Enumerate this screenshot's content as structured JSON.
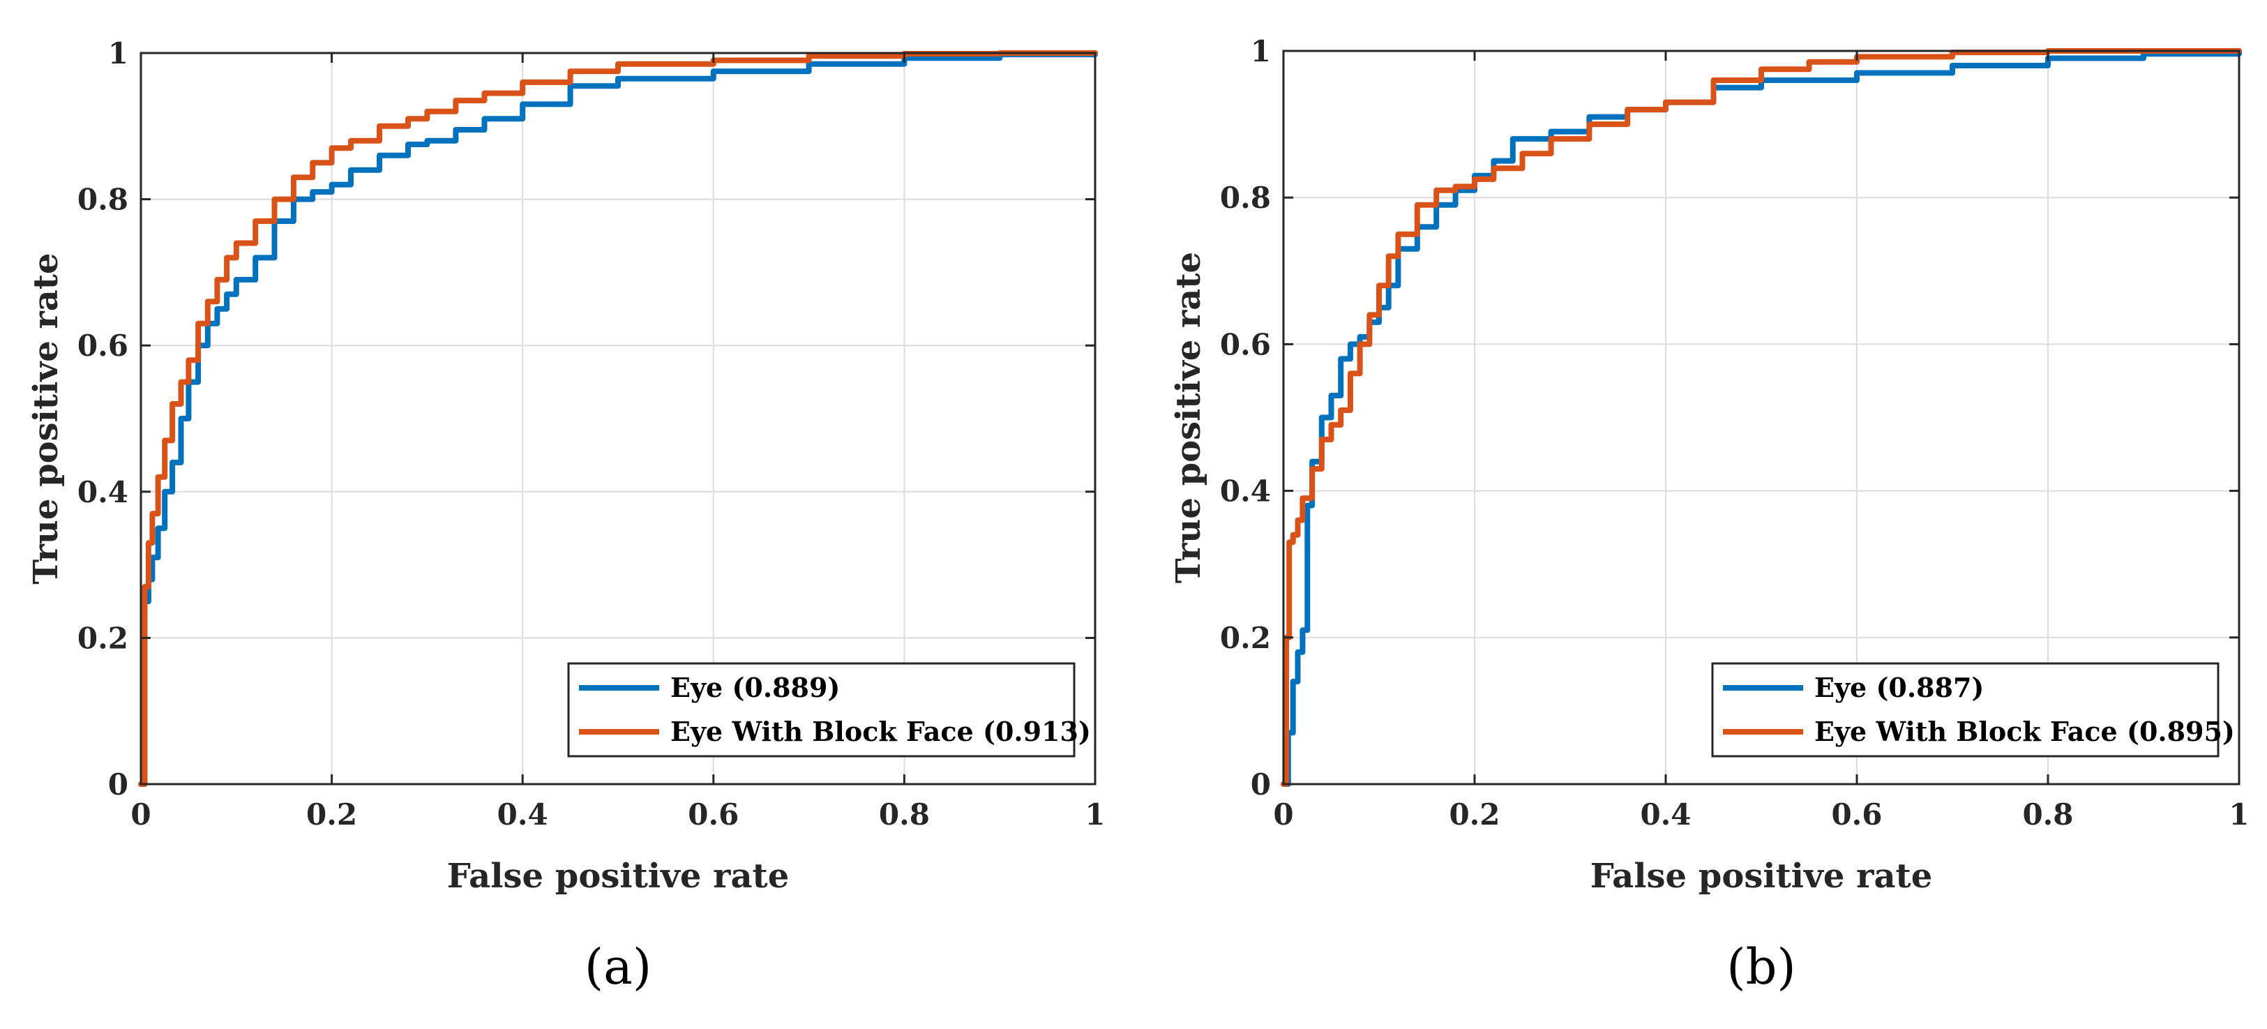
{
  "colors": {
    "series1": "#0072BD",
    "series2": "#D95319"
  },
  "chart_data": [
    {
      "type": "line",
      "panel_label": "(a)",
      "xlabel": "False positive rate",
      "ylabel": "True positive rate",
      "xlim": [
        0,
        1
      ],
      "ylim": [
        0,
        1
      ],
      "xticks": [
        "0",
        "0.2",
        "0.4",
        "0.6",
        "0.8",
        "1"
      ],
      "yticks": [
        "0",
        "0.2",
        "0.4",
        "0.6",
        "0.8",
        "1"
      ],
      "grid": true,
      "legend_position": "bottom-right",
      "series": [
        {
          "name": "Eye (0.889)",
          "color": "#0072BD",
          "x": [
            0,
            0.004,
            0.008,
            0.012,
            0.018,
            0.025,
            0.033,
            0.042,
            0.05,
            0.06,
            0.07,
            0.08,
            0.09,
            0.1,
            0.12,
            0.14,
            0.16,
            0.18,
            0.2,
            0.22,
            0.25,
            0.28,
            0.3,
            0.33,
            0.36,
            0.4,
            0.45,
            0.5,
            0.6,
            0.7,
            0.8,
            0.9,
            1
          ],
          "y": [
            0,
            0.25,
            0.28,
            0.31,
            0.35,
            0.4,
            0.44,
            0.5,
            0.55,
            0.6,
            0.63,
            0.65,
            0.67,
            0.69,
            0.72,
            0.77,
            0.8,
            0.81,
            0.82,
            0.84,
            0.86,
            0.875,
            0.88,
            0.895,
            0.91,
            0.93,
            0.955,
            0.965,
            0.975,
            0.985,
            0.993,
            0.998,
            1
          ]
        },
        {
          "name": "Eye With Block Face (0.913)",
          "color": "#D95319",
          "x": [
            0,
            0.004,
            0.008,
            0.012,
            0.018,
            0.025,
            0.033,
            0.042,
            0.05,
            0.06,
            0.07,
            0.08,
            0.09,
            0.1,
            0.12,
            0.14,
            0.16,
            0.18,
            0.2,
            0.22,
            0.25,
            0.28,
            0.3,
            0.33,
            0.36,
            0.4,
            0.45,
            0.5,
            0.6,
            0.7,
            0.8,
            0.9,
            1
          ],
          "y": [
            0,
            0.27,
            0.33,
            0.37,
            0.42,
            0.47,
            0.52,
            0.55,
            0.58,
            0.63,
            0.66,
            0.69,
            0.72,
            0.74,
            0.77,
            0.8,
            0.83,
            0.85,
            0.87,
            0.88,
            0.9,
            0.91,
            0.92,
            0.935,
            0.945,
            0.96,
            0.975,
            0.985,
            0.99,
            0.996,
            0.999,
            1,
            1
          ]
        }
      ]
    },
    {
      "type": "line",
      "panel_label": "(b)",
      "xlabel": "False positive rate",
      "ylabel": "True positive rate",
      "xlim": [
        0,
        1
      ],
      "ylim": [
        0,
        1
      ],
      "xticks": [
        "0",
        "0.2",
        "0.4",
        "0.6",
        "0.8",
        "1"
      ],
      "yticks": [
        "0",
        "0.2",
        "0.4",
        "0.6",
        "0.8",
        "1"
      ],
      "grid": true,
      "legend_position": "bottom-right",
      "series": [
        {
          "name": "Eye (0.887)",
          "color": "#0072BD",
          "x": [
            0,
            0.005,
            0.01,
            0.015,
            0.02,
            0.025,
            0.025,
            0.03,
            0.04,
            0.05,
            0.06,
            0.07,
            0.08,
            0.09,
            0.1,
            0.11,
            0.12,
            0.14,
            0.16,
            0.18,
            0.2,
            0.22,
            0.24,
            0.28,
            0.32,
            0.36,
            0.4,
            0.45,
            0.5,
            0.6,
            0.7,
            0.8,
            0.9,
            1
          ],
          "y": [
            0,
            0.07,
            0.14,
            0.18,
            0.21,
            0.22,
            0.38,
            0.44,
            0.5,
            0.53,
            0.58,
            0.6,
            0.61,
            0.63,
            0.65,
            0.68,
            0.73,
            0.76,
            0.79,
            0.81,
            0.83,
            0.85,
            0.88,
            0.89,
            0.91,
            0.92,
            0.93,
            0.95,
            0.96,
            0.97,
            0.98,
            0.99,
            0.996,
            1
          ]
        },
        {
          "name": "Eye With Block Face (0.895)",
          "color": "#D95319",
          "x": [
            0,
            0.003,
            0.006,
            0.01,
            0.015,
            0.02,
            0.03,
            0.04,
            0.05,
            0.06,
            0.07,
            0.08,
            0.09,
            0.1,
            0.11,
            0.12,
            0.14,
            0.16,
            0.18,
            0.2,
            0.22,
            0.25,
            0.28,
            0.32,
            0.36,
            0.4,
            0.45,
            0.5,
            0.55,
            0.6,
            0.7,
            0.8,
            0.9,
            1
          ],
          "y": [
            0,
            0.2,
            0.33,
            0.34,
            0.36,
            0.39,
            0.43,
            0.47,
            0.49,
            0.51,
            0.56,
            0.6,
            0.64,
            0.68,
            0.72,
            0.75,
            0.79,
            0.81,
            0.815,
            0.825,
            0.84,
            0.86,
            0.88,
            0.9,
            0.92,
            0.93,
            0.96,
            0.975,
            0.985,
            0.992,
            0.998,
            1,
            1,
            1
          ]
        }
      ]
    }
  ]
}
